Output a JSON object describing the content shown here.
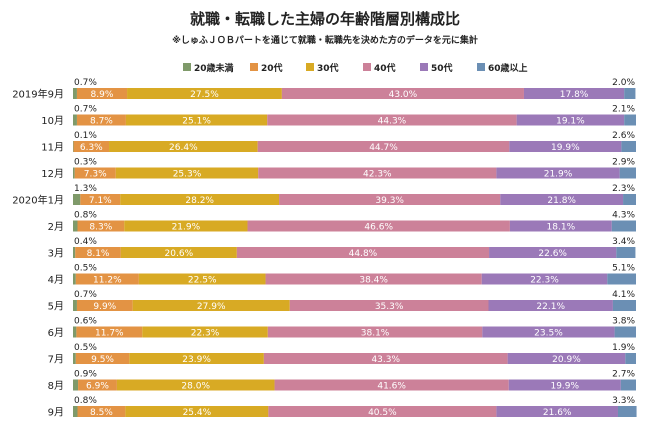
{
  "chart_data": {
    "type": "bar",
    "orientation": "horizontal",
    "stacked": true,
    "title": "就職・転職した主婦の年齢階層別構成比",
    "subtitle": "※しゅふＪＯＢパートを通じて就職・転職先を決めた方のデータを元に集計",
    "legend_position": "top",
    "xlim": [
      0,
      100
    ],
    "categories": [
      "2019年9月",
      "10月",
      "11月",
      "12月",
      "2020年1月",
      "2月",
      "3月",
      "4月",
      "5月",
      "6月",
      "7月",
      "8月",
      "9月"
    ],
    "series": [
      {
        "name": "20歳未満",
        "color": "#7f9a6a",
        "values": [
          0.7,
          0.7,
          0.1,
          0.3,
          1.3,
          0.8,
          0.4,
          0.5,
          0.7,
          0.6,
          0.5,
          0.9,
          0.8
        ]
      },
      {
        "name": "20代",
        "color": "#e39344",
        "values": [
          8.9,
          8.7,
          6.3,
          7.3,
          7.1,
          8.3,
          8.1,
          11.2,
          9.9,
          11.7,
          9.5,
          6.9,
          8.5
        ]
      },
      {
        "name": "30代",
        "color": "#d8aa24",
        "values": [
          27.5,
          25.1,
          26.4,
          25.3,
          28.2,
          21.9,
          20.6,
          22.5,
          27.9,
          22.3,
          23.9,
          28.0,
          25.4
        ]
      },
      {
        "name": "40代",
        "color": "#cc8199",
        "values": [
          43.0,
          44.3,
          44.7,
          42.3,
          39.3,
          46.6,
          44.8,
          38.4,
          35.3,
          38.1,
          43.3,
          41.6,
          40.5
        ]
      },
      {
        "name": "50代",
        "color": "#9b79b8",
        "values": [
          17.8,
          19.1,
          19.9,
          21.9,
          21.8,
          18.1,
          22.6,
          22.3,
          22.1,
          23.5,
          20.9,
          19.9,
          21.6
        ]
      },
      {
        "name": "60歳以上",
        "color": "#6b8fb4",
        "values": [
          2.0,
          2.1,
          2.6,
          2.9,
          2.3,
          4.3,
          3.4,
          5.1,
          4.1,
          3.8,
          1.9,
          2.7,
          3.3
        ]
      }
    ]
  }
}
